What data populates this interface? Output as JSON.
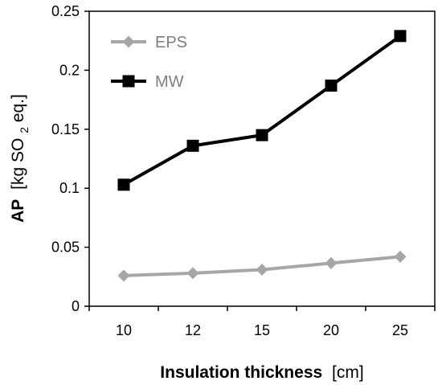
{
  "chart_data": {
    "type": "line",
    "categories": [
      "10",
      "12",
      "15",
      "20",
      "25"
    ],
    "series": [
      {
        "name": "EPS",
        "values": [
          0.026,
          0.028,
          0.031,
          0.0365,
          0.042
        ],
        "color": "#a6a6a6",
        "marker": "diamond"
      },
      {
        "name": "MW",
        "values": [
          0.103,
          0.136,
          0.145,
          0.187,
          0.229
        ],
        "color": "#000000",
        "marker": "square"
      }
    ],
    "yticks": [
      "0",
      "0.05",
      "0.1",
      "0.15",
      "0.2",
      "0.25"
    ],
    "ylim": [
      0,
      0.25
    ],
    "grid": false,
    "legend_position": "top-left",
    "xlabel": {
      "bold": "Insulation thickness",
      "unit": "[cm]"
    },
    "ylabel": {
      "bold": "AP",
      "unit_prefix": "[kg SO",
      "unit_sub": "2",
      "unit_suffix": " eq.]"
    }
  }
}
